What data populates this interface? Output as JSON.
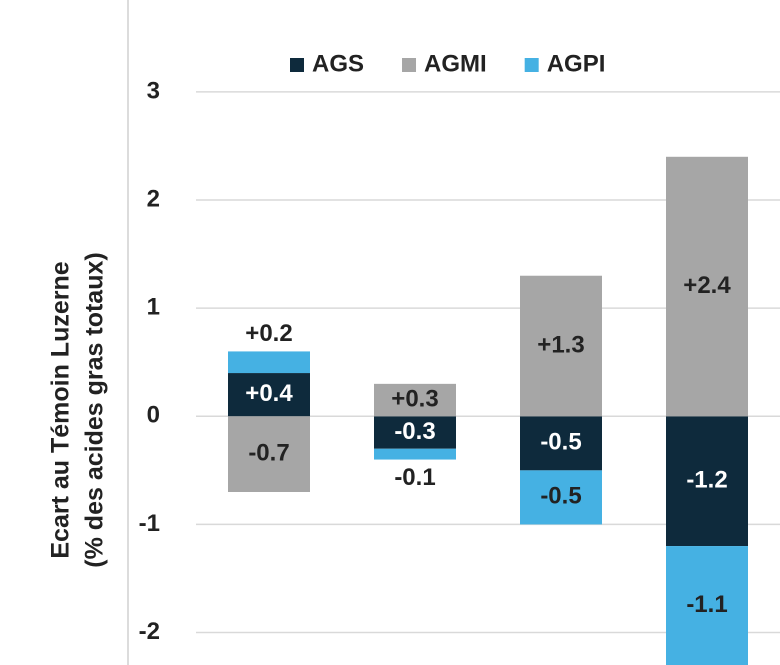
{
  "chart_data": {
    "type": "bar",
    "stacked": true,
    "y_label": [
      "Ecart au Témoin Luzerne",
      "(% des acides gras totaux)"
    ],
    "categories": [
      null,
      null,
      null,
      null
    ],
    "series": [
      {
        "name": "AGS",
        "color": "#0e2a3c",
        "values": [
          0.4,
          -0.3,
          -0.5,
          -1.2
        ],
        "value_labels": [
          "+0.4",
          "-0.3",
          "-0.5",
          "-1.2"
        ]
      },
      {
        "name": "AGMI",
        "color": "#a6a6a6",
        "values": [
          -0.7,
          0.3,
          1.3,
          2.4
        ],
        "value_labels": [
          "-0.7",
          "+0.3",
          "+1.3",
          "+2.4"
        ]
      },
      {
        "name": "AGPI",
        "color": "#45b1e3",
        "values": [
          0.2,
          -0.1,
          -0.5,
          -1.1
        ],
        "value_labels": [
          "+0.2",
          "-0.1",
          "-0.5",
          "-1.1"
        ]
      }
    ],
    "ylim": [
      -2.3,
      3.85
    ],
    "yticks": [
      -2,
      -1,
      0,
      1,
      2,
      3
    ],
    "grid": true,
    "legend": "top"
  }
}
